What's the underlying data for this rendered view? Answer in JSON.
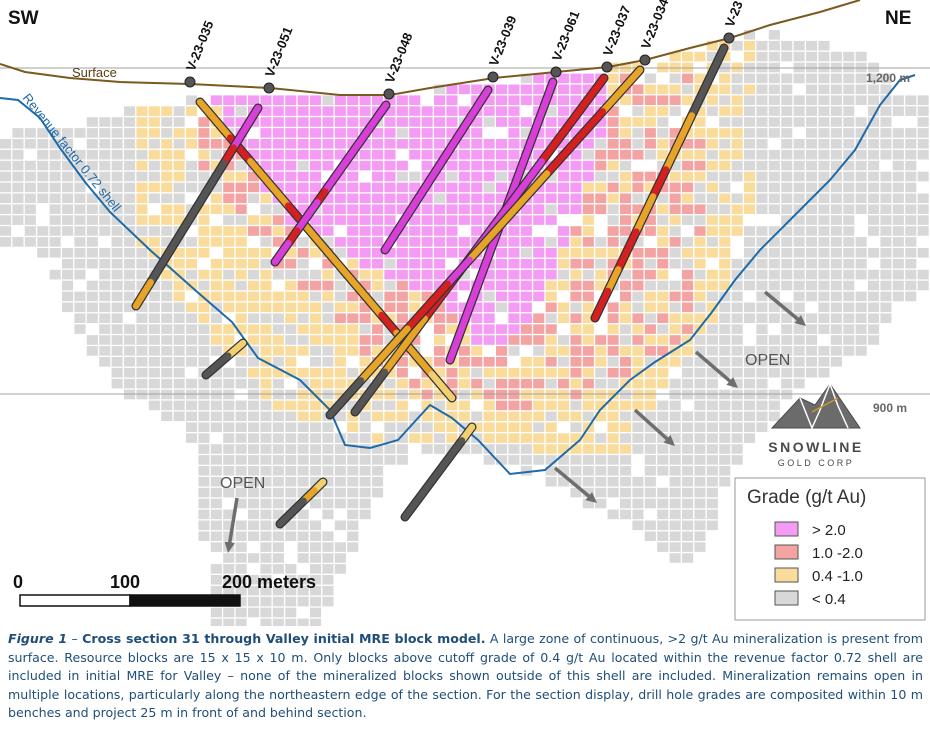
{
  "corners": {
    "left": "SW",
    "right": "NE"
  },
  "surface_label": "Surface",
  "shell_label": "Revenue factor 0.72 shell",
  "elevations": [
    {
      "label": "1,200 m",
      "value": 1200
    },
    {
      "label": "900 m",
      "value": 900
    }
  ],
  "open_labels": [
    "OPEN",
    "OPEN"
  ],
  "drill_holes": [
    "V-23-035",
    "V-23-051",
    "V-23-048",
    "V-23-039",
    "V-23-061",
    "V-23-037",
    "V-23-034",
    "V-23"
  ],
  "scale": {
    "labels": [
      "0",
      "100",
      "200 meters"
    ]
  },
  "legend": {
    "title": "Grade (g/t Au)",
    "items": [
      {
        "label": "> 2.0",
        "color": "#f49cf4"
      },
      {
        "label": "1.0 -2.0",
        "color": "#f4a3a3"
      },
      {
        "label": "0.4 -1.0",
        "color": "#f9dc9c"
      },
      {
        "label": "< 0.4",
        "color": "#d8d8d8"
      }
    ]
  },
  "logo": {
    "name": "SNOWLINE",
    "sub": "GOLD CORP"
  },
  "caption": {
    "label": "Figure 1",
    "dash": " – ",
    "title": "Cross section 31 through Valley initial MRE block model.",
    "body": " A large zone of continuous, >2 g/t Au mineralization is present from surface. Resource blocks are 15 x 15 x 10 m. Only blocks above cutoff grade of 0.4 g/t Au located within the revenue factor 0.72 shell are included in initial MRE for Valley – none of the mineralized blocks shown outside of this shell are included. Mineralization remains open in multiple locations, particularly along the northeastern edge of the section. For the section display, drill hole grades are composited within 10 m benches and project 25 m in front of and behind section."
  }
}
